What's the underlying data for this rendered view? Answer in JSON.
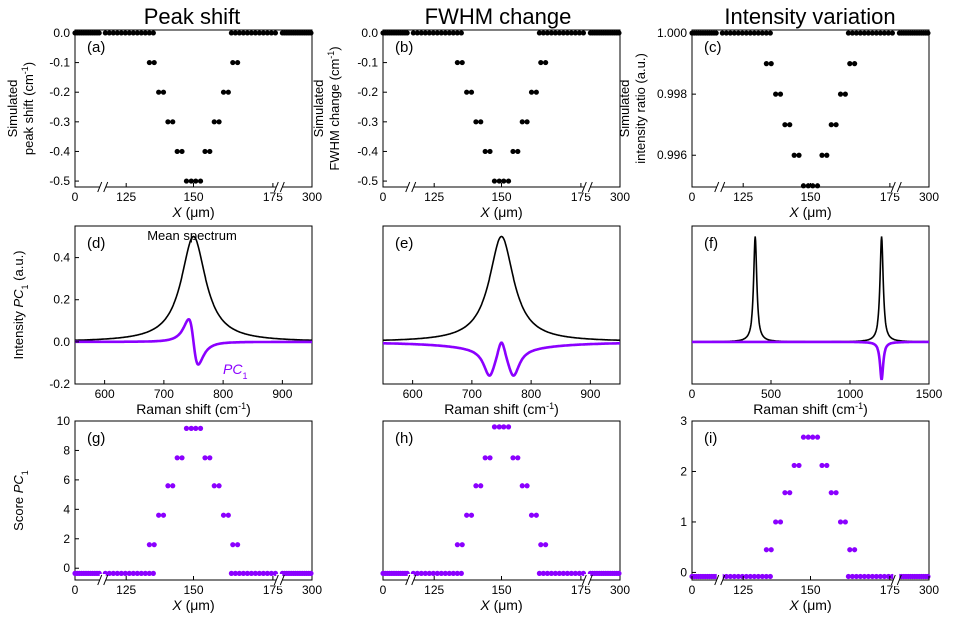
{
  "column_titles": [
    "Peak shift",
    "FWHM change",
    "Intensity variation"
  ],
  "colors": {
    "black": "#000000",
    "purple": "#8B00FF"
  },
  "chart_data": [
    {
      "id": "a",
      "panel_label": "(a)",
      "type": "scatter",
      "ylabel_lines": [
        "Simulated",
        "peak shift (cm<sup>-1</sup>)"
      ],
      "ylabel_parts": [
        [
          "Simulated"
        ],
        [
          "peak shift (cm",
          "-1",
          ")"
        ]
      ],
      "xlabel": "X (μm)",
      "xticks": [
        "0",
        "125",
        "150",
        "175",
        "300"
      ],
      "ylim": [
        -0.52,
        0.01
      ],
      "yticks": [
        0.0,
        -0.1,
        -0.2,
        -0.3,
        -0.4,
        -0.5
      ],
      "ytick_labels": [
        "0.0",
        "-0.1",
        "-0.2",
        "-0.3",
        "-0.4",
        "-0.5"
      ],
      "profile": [
        0,
        -0.1,
        -0.2,
        -0.3,
        -0.4,
        -0.5,
        -0.5,
        -0.4,
        -0.3,
        -0.2,
        -0.1,
        0
      ],
      "color": "#000000",
      "axis_break": true
    },
    {
      "id": "b",
      "panel_label": "(b)",
      "type": "scatter",
      "ylabel_parts": [
        [
          "Simulated"
        ],
        [
          "FWHM change (cm",
          "-1",
          ")"
        ]
      ],
      "xlabel": "X (μm)",
      "xticks": [
        "0",
        "125",
        "150",
        "175",
        "300"
      ],
      "ylim": [
        -0.52,
        0.01
      ],
      "yticks": [
        0.0,
        -0.1,
        -0.2,
        -0.3,
        -0.4,
        -0.5
      ],
      "ytick_labels": [
        "0.0",
        "-0.1",
        "-0.2",
        "-0.3",
        "-0.4",
        "-0.5"
      ],
      "profile": [
        0,
        -0.1,
        -0.2,
        -0.3,
        -0.4,
        -0.5,
        -0.5,
        -0.4,
        -0.3,
        -0.2,
        -0.1,
        0
      ],
      "color": "#000000",
      "axis_break": true
    },
    {
      "id": "c",
      "panel_label": "(c)",
      "type": "scatter",
      "ylabel_parts": [
        [
          "Simulated"
        ],
        [
          "intensity ratio (a.u.)"
        ]
      ],
      "xlabel": "X (μm)",
      "xticks": [
        "0",
        "125",
        "150",
        "175",
        "300"
      ],
      "ylim": [
        0.99496,
        1.0001
      ],
      "yticks": [
        1.0,
        0.998,
        0.996
      ],
      "ytick_labels": [
        "1.000",
        "0.998",
        "0.996"
      ],
      "profile": [
        1.0,
        0.999,
        0.998,
        0.997,
        0.996,
        0.995,
        0.995,
        0.996,
        0.997,
        0.998,
        0.999,
        1.0
      ],
      "color": "#000000",
      "axis_break": true
    },
    {
      "id": "d",
      "panel_label": "(d)",
      "type": "line",
      "ylabel_parts": [
        [
          "Intensity ",
          "PC",
          "1",
          " (a.u.)"
        ]
      ],
      "xlabel": "Raman shift (cm-1)",
      "xlim": [
        550,
        950
      ],
      "xticks": [
        600,
        700,
        800,
        900
      ],
      "xtick_labels": [
        "600",
        "700",
        "800",
        "900"
      ],
      "ylim": [
        -0.2,
        0.55
      ],
      "yticks": [
        -0.2,
        0.0,
        0.2,
        0.4
      ],
      "ytick_labels": [
        "-0.2",
        "0.0",
        "0.2",
        "0.4"
      ],
      "annotations": [
        "Mean spectrum",
        "PC1"
      ],
      "series": [
        {
          "kind": "lorentz",
          "peaks": [
            [
              750,
              0.5,
              25
            ]
          ]
        },
        {
          "kind": "dlorentz",
          "center": 750,
          "amp": 0.165,
          "hw": 14
        }
      ]
    },
    {
      "id": "e",
      "panel_label": "(e)",
      "type": "line",
      "xlabel": "Raman shift (cm-1)",
      "xlim": [
        550,
        950
      ],
      "xticks": [
        600,
        700,
        800,
        900
      ],
      "xtick_labels": [
        "600",
        "700",
        "800",
        "900"
      ],
      "ylim": [
        -0.2,
        0.55
      ],
      "series": [
        {
          "kind": "lorentz",
          "peaks": [
            [
              750,
              0.5,
              25
            ]
          ]
        },
        {
          "kind": "fwhm",
          "center": 750,
          "hw": 25,
          "amp": 0.18
        }
      ]
    },
    {
      "id": "f",
      "panel_label": "(f)",
      "type": "line",
      "xlabel": "Raman shift (cm-1)",
      "xlim": [
        0,
        1500
      ],
      "xticks": [
        0,
        500,
        1000,
        1500
      ],
      "xtick_labels": [
        "0",
        "500",
        "1000",
        "1500"
      ],
      "ylim": [
        -0.2,
        0.55
      ],
      "series": [
        {
          "kind": "lorentz",
          "peaks": [
            [
              400,
              0.5,
              12
            ],
            [
              1200,
              0.5,
              12
            ]
          ]
        },
        {
          "kind": "lorentz",
          "peaks": [
            [
              1200,
              -0.18,
              12
            ]
          ]
        }
      ]
    },
    {
      "id": "g",
      "panel_label": "(g)",
      "type": "scatter",
      "ylabel_parts": [
        [
          "Score ",
          "PC",
          "1"
        ]
      ],
      "xlabel": "X (μm)",
      "xticks": [
        "0",
        "125",
        "150",
        "175",
        "300"
      ],
      "ylim": [
        -0.8,
        10
      ],
      "yticks": [
        0,
        2,
        4,
        6,
        8,
        10
      ],
      "ytick_labels": [
        "0",
        "2",
        "4",
        "6",
        "8",
        "10"
      ],
      "baseline": -0.35,
      "profile": [
        -0.35,
        1.6,
        3.6,
        5.6,
        7.5,
        9.5,
        9.5,
        7.5,
        5.6,
        3.6,
        1.6,
        -0.35
      ],
      "color": "#8B00FF",
      "axis_break": true
    },
    {
      "id": "h",
      "panel_label": "(h)",
      "type": "scatter",
      "xlabel": "X (μm)",
      "xticks": [
        "0",
        "125",
        "150",
        "175",
        "300"
      ],
      "ylim": [
        -0.8,
        10
      ],
      "baseline": -0.35,
      "profile": [
        -0.35,
        1.6,
        3.6,
        5.6,
        7.5,
        9.6,
        9.6,
        7.5,
        5.6,
        3.6,
        1.6,
        -0.35
      ],
      "color": "#8B00FF",
      "axis_break": true
    },
    {
      "id": "i",
      "panel_label": "(i)",
      "type": "scatter",
      "xlabel": "X (μm)",
      "xticks": [
        "0",
        "125",
        "150",
        "175",
        "300"
      ],
      "ylim": [
        -0.15,
        3
      ],
      "yticks": [
        0,
        1,
        2,
        3
      ],
      "ytick_labels": [
        "0",
        "1",
        "2",
        "3"
      ],
      "baseline": -0.08,
      "profile": [
        -0.08,
        0.45,
        1.0,
        1.58,
        2.12,
        2.68,
        2.68,
        2.12,
        1.58,
        1.0,
        0.45,
        -0.08
      ],
      "color": "#8B00FF",
      "axis_break": true
    }
  ]
}
